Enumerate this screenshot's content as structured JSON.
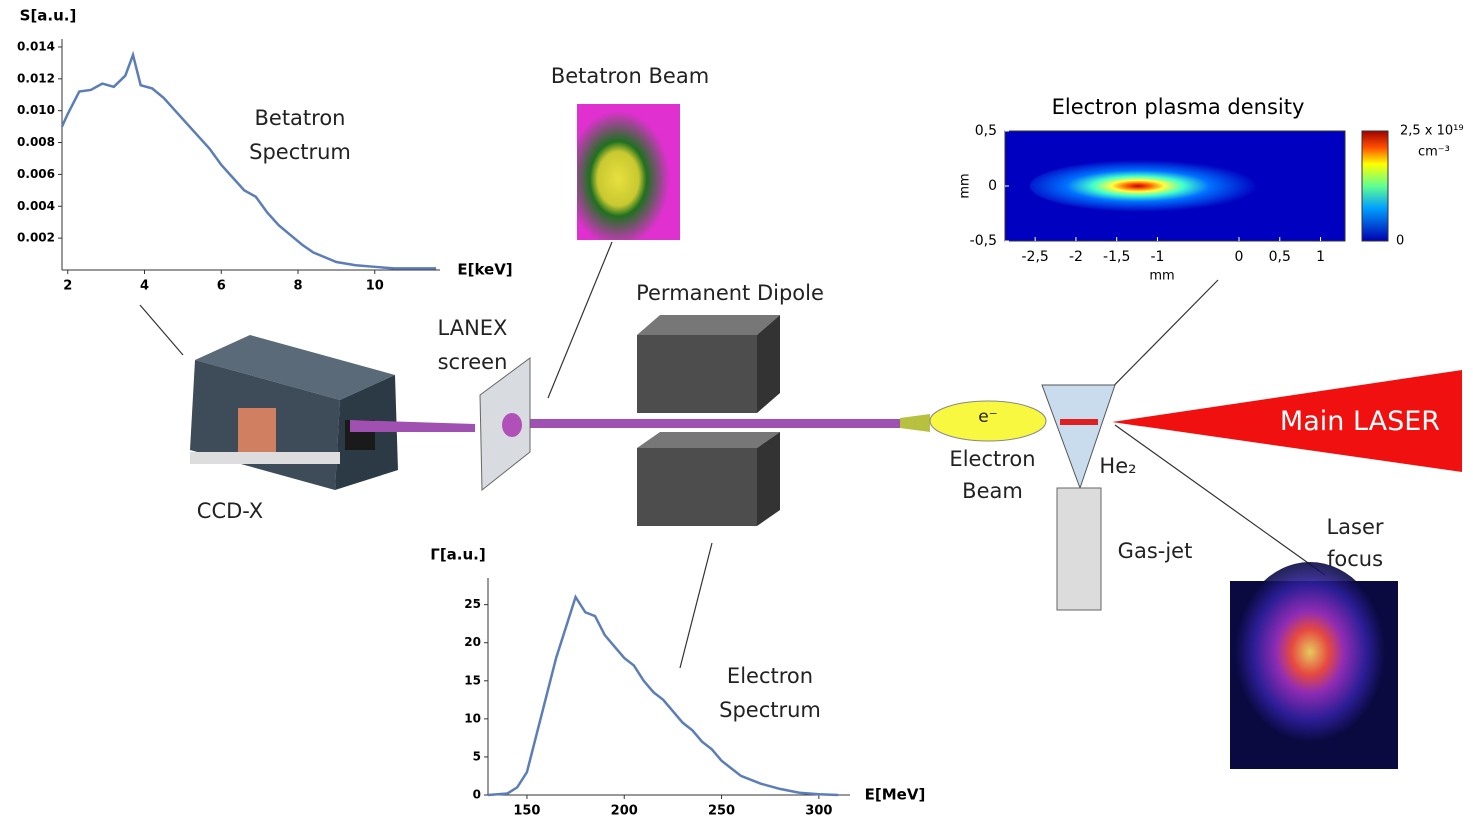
{
  "chart_data": [
    {
      "type": "line",
      "title": "Betatron Spectrum",
      "y_label": "S[a.u.]",
      "x_label": "E[keV]",
      "color": "#5b7db8",
      "xlim": [
        1.85,
        11.7
      ],
      "ylim": [
        0,
        0.0145
      ],
      "xticks": [
        2,
        4,
        6,
        8,
        10
      ],
      "yticks": [
        0.002,
        0.004,
        0.006,
        0.008,
        {
          "value": 0.01,
          "label": "0.010"
        },
        0.012,
        0.014
      ],
      "x": [
        1.85,
        2,
        2.3,
        2.6,
        2.9,
        3.2,
        3.5,
        3.7,
        3.9,
        4.2,
        4.5,
        4.8,
        5.1,
        5.4,
        5.7,
        6,
        6.3,
        6.6,
        6.9,
        7.2,
        7.5,
        7.8,
        8.1,
        8.4,
        8.7,
        9,
        9.5,
        10,
        10.5,
        11,
        11.6
      ],
      "values": [
        0.009,
        0.0098,
        0.0112,
        0.0113,
        0.0117,
        0.0115,
        0.0122,
        0.0135,
        0.0116,
        0.0114,
        0.0108,
        0.01,
        0.0092,
        0.0084,
        0.0076,
        0.0066,
        0.0058,
        0.005,
        0.0046,
        0.0036,
        0.0028,
        0.0022,
        0.0016,
        0.0011,
        0.0008,
        0.0005,
        0.0003,
        0.0002,
        0.0001,
        0.0001,
        0.0001
      ]
    },
    {
      "type": "line",
      "title": "Electron Spectrum",
      "y_label": "Γ[a.u.]",
      "x_label": "E[MeV]",
      "color": "#5b7db8",
      "xlim": [
        130,
        316
      ],
      "ylim": [
        0,
        28.5
      ],
      "xticks": [
        150,
        200,
        250,
        300
      ],
      "yticks": [
        0,
        5,
        10,
        15,
        20,
        25
      ],
      "x": [
        130,
        140,
        145,
        150,
        155,
        160,
        165,
        170,
        175,
        180,
        185,
        190,
        195,
        200,
        205,
        210,
        215,
        220,
        225,
        230,
        235,
        240,
        245,
        250,
        255,
        260,
        270,
        280,
        290,
        300,
        310
      ],
      "values": [
        0,
        0.2,
        1,
        3,
        8,
        13,
        18,
        22,
        26,
        24,
        23.5,
        21,
        19.5,
        18,
        17,
        15,
        13.5,
        12.5,
        11,
        9.5,
        8.5,
        7,
        6,
        4.5,
        3.5,
        2.5,
        1.5,
        0.8,
        0.3,
        0.1,
        0
      ]
    }
  ],
  "density_map": {
    "title": "Electron plasma density",
    "x_label": "mm",
    "y_label": "mm",
    "xlim": [
      -2.87,
      1.3
    ],
    "ylim": [
      -0.5,
      0.5
    ],
    "xticks": [
      {
        "value": -2.5,
        "label": "-2,5"
      },
      -2,
      {
        "value": -1.5,
        "label": "-1,5"
      },
      -1,
      0,
      {
        "value": 0.5,
        "label": "0,5"
      },
      1
    ],
    "yticks": [
      {
        "value": 0.5,
        "label": "0,5"
      },
      0,
      {
        "value": -0.5,
        "label": "-0,5"
      }
    ],
    "colorbar_max": "2,5 x 10¹⁹",
    "colorbar_unit": "cm⁻³",
    "colorbar_min": "0"
  },
  "labels": {
    "betatron_beam": "Betatron Beam",
    "dipole": "Permanent Dipole",
    "lanex": "LANEX screen",
    "ccd": "CCD-X",
    "electron": "e⁻",
    "electron_beam": "Electron Beam",
    "gas": "He₂",
    "gas_jet": "Gas-jet",
    "laser": "Main LASER",
    "laser_focus": "Laser focus"
  }
}
